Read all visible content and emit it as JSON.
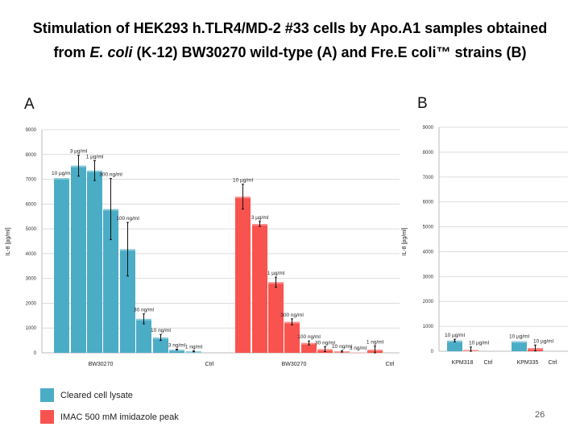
{
  "title": {
    "line1": "Stimulation of HEK293 h.TLR4/MD-2 #33 cells by Apo.A1 samples obtained",
    "line2_pre": "from ",
    "line2_italic": "E. coli",
    "line2_post": " (K-12) BW30270 wild-type (A) and Fre.E coli™ strains (B)"
  },
  "page_number": "26",
  "legend": [
    {
      "label": "Cleared cell lysate",
      "color": "#4bacc6"
    },
    {
      "label": "IMAC 500 mM imidazole peak",
      "color": "#f9534f"
    }
  ],
  "chart_data": [
    {
      "panel": "A",
      "type": "bar",
      "ylabel": "IL-8 [pg/ml]",
      "ylim": [
        0,
        9000
      ],
      "yticks": [
        0,
        1000,
        2000,
        3000,
        4000,
        5000,
        6000,
        7000,
        8000,
        9000
      ],
      "grid": true,
      "xtick_labels": [
        "BW30270",
        "Ctrl",
        "BW30270",
        "Ctrl"
      ],
      "series": [
        {
          "name": "Cleared cell lysate",
          "color": "#4bacc6",
          "labels": [
            "10 µg/ml",
            "3 µg/ml",
            "1 µg/ml",
            "300 ng/ml",
            "100 ng/ml",
            "30 ng/ml",
            "10 ng/ml",
            "3 ng/ml",
            "1 ng/ml"
          ],
          "values": [
            7050,
            7550,
            7350,
            5800,
            4180,
            1370,
            620,
            130,
            60
          ],
          "errors": [
            0,
            420,
            400,
            1230,
            1080,
            200,
            120,
            20,
            20
          ]
        },
        {
          "name": "IMAC 500 mM imidazole peak",
          "color": "#f9534f",
          "labels": [
            "10 µg/ml",
            "3 µg/ml",
            "1 µg/ml",
            "300 ng/ml",
            "100 ng/ml",
            "30 ng/ml",
            "10 ng/ml",
            "3 ng/ml",
            "1 ng/ml"
          ],
          "values": [
            6300,
            5200,
            2850,
            1250,
            400,
            150,
            60,
            0,
            130
          ],
          "errors": [
            500,
            100,
            200,
            120,
            80,
            100,
            30,
            0,
            150
          ]
        }
      ]
    },
    {
      "panel": "B",
      "type": "bar",
      "ylabel": "IL-8 [pg/ml]",
      "ylim": [
        0,
        9000
      ],
      "yticks": [
        0,
        1000,
        2000,
        3000,
        4000,
        5000,
        6000,
        7000,
        8000,
        9000
      ],
      "grid": true,
      "xtick_labels": [
        "KPM318",
        "Ctrl",
        "KPM335",
        "Ctrl"
      ],
      "series": [
        {
          "name": "Cleared cell lysate",
          "color": "#4bacc6",
          "labels": [
            "10 µg/ml",
            "10 µg/ml"
          ],
          "values": [
            430,
            400
          ],
          "errors": [
            50,
            0
          ]
        },
        {
          "name": "IMAC 500 mM imidazole peak",
          "color": "#f9534f",
          "labels": [
            "10 µg/ml",
            "10 µg/ml"
          ],
          "values": [
            50,
            130
          ],
          "errors": [
            120,
            120
          ]
        }
      ]
    }
  ]
}
